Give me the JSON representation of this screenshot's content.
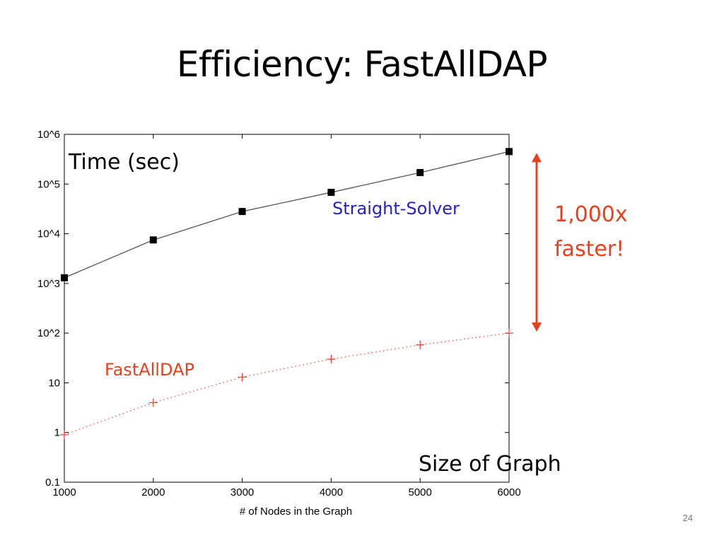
{
  "slide": {
    "title": "Efficiency: FastAllDAP",
    "page_number": "24"
  },
  "chart_data": {
    "type": "line",
    "scale_y": "log",
    "xlabel": "# of Nodes in the Graph",
    "ylabel": "",
    "xlim": [
      1000,
      6000
    ],
    "ylim": [
      0.1,
      1000000
    ],
    "x_ticks": [
      1000,
      2000,
      3000,
      4000,
      5000,
      6000
    ],
    "x_tick_labels": [
      "1000",
      "2000",
      "3000",
      "4000",
      "5000",
      "6000"
    ],
    "y_ticks": [
      0.1,
      1,
      10,
      100,
      1000,
      10000,
      100000,
      1000000
    ],
    "y_tick_labels": [
      "0.1",
      "1",
      "10",
      "10^2",
      "10^3",
      "10^4",
      "10^5",
      "10^6"
    ],
    "grid": false,
    "x": [
      1000,
      2000,
      3000,
      4000,
      5000,
      6000
    ],
    "series": [
      {
        "name": "Straight-Solver",
        "values": [
          1300,
          7500,
          28000,
          68000,
          170000,
          450000
        ],
        "color": "#000000",
        "marker": "square",
        "line_style": "solid"
      },
      {
        "name": "FastAllDAP",
        "values": [
          0.9,
          4,
          13,
          30,
          58,
          100
        ],
        "color": "#ff3333",
        "marker": "plus",
        "line_style": "dotted"
      }
    ],
    "annotations": {
      "y_axis_note": "Time (sec)",
      "x_axis_note": "Size of Graph",
      "speedup_text_line1": "1,000x",
      "speedup_text_line2": "faster!",
      "speedup_from": 100,
      "speedup_to": 450000,
      "speedup_color": "#e8401c",
      "straight_label_color": "#2222cc",
      "fast_label_color": "#e8401c"
    }
  }
}
